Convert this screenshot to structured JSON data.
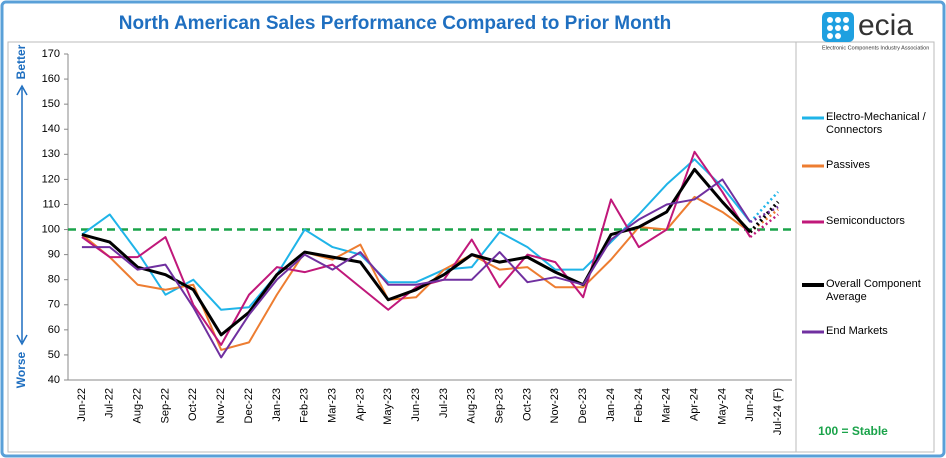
{
  "logo": {
    "name": "ecia",
    "tagline": "Electronic Components Industry Association"
  },
  "chart_data": {
    "type": "line",
    "title": "North American Sales Performance Compared to Prior Month",
    "axis_annotations": {
      "top": "Better",
      "bottom": "Worse"
    },
    "annotation": "100 = Stable",
    "reference_line": {
      "value": 100,
      "color": "#1aa34a"
    },
    "categories": [
      "Jun-22",
      "Jul-22",
      "Aug-22",
      "Sep-22",
      "Oct-22",
      "Nov-22",
      "Dec-22",
      "Jan-23",
      "Feb-23",
      "Mar-23",
      "Apr-23",
      "May-23",
      "Jun-23",
      "Jul-23",
      "Aug-23",
      "Sep-23",
      "Oct-23",
      "Nov-23",
      "Dec-23",
      "Jan-24",
      "Feb-24",
      "Mar-24",
      "Apr-24",
      "May-24",
      "Jun-24",
      "Jul-24 (F)"
    ],
    "series": [
      {
        "name": "Electro-Mechanical / Connectors",
        "color": "#1fb4e8",
        "values": [
          98,
          106,
          91,
          74,
          80,
          68,
          69,
          82,
          100,
          93,
          90,
          79,
          79,
          84,
          85,
          99,
          93,
          84,
          84,
          95,
          106,
          118,
          128,
          117,
          103,
          115
        ]
      },
      {
        "name": "Passives",
        "color": "#ed7d31",
        "values": [
          98,
          89,
          78,
          76,
          78,
          52,
          55,
          74,
          91,
          88,
          94,
          72,
          73,
          84,
          90,
          84,
          85,
          77,
          77,
          88,
          101,
          100,
          113,
          107,
          99,
          108
        ]
      },
      {
        "name": "Semiconductors",
        "color": "#c0187a",
        "values": [
          97,
          89,
          89,
          97,
          70,
          54,
          74,
          85,
          83,
          86,
          77,
          68,
          77,
          80,
          96,
          77,
          90,
          87,
          73,
          112,
          93,
          100,
          131,
          115,
          97,
          106
        ]
      },
      {
        "name": "Overall Component Average",
        "color": "#000000",
        "width": 3,
        "values": [
          98,
          95,
          85,
          82,
          76,
          58,
          67,
          82,
          91,
          89,
          87,
          72,
          76,
          82,
          90,
          87,
          89,
          83,
          78,
          98,
          101,
          107,
          124,
          111,
          99,
          111
        ]
      },
      {
        "name": "End Markets",
        "color": "#7030a0",
        "values": [
          93,
          93,
          84,
          86,
          69,
          49,
          66,
          80,
          90,
          84,
          91,
          78,
          78,
          80,
          80,
          91,
          79,
          81,
          78,
          96,
          104,
          110,
          112,
          120,
          103,
          109
        ]
      }
    ],
    "ylim": [
      40,
      170
    ],
    "yticks": [
      40,
      50,
      60,
      70,
      80,
      90,
      100,
      110,
      120,
      130,
      140,
      150,
      160,
      170
    ],
    "legend": "right"
  }
}
